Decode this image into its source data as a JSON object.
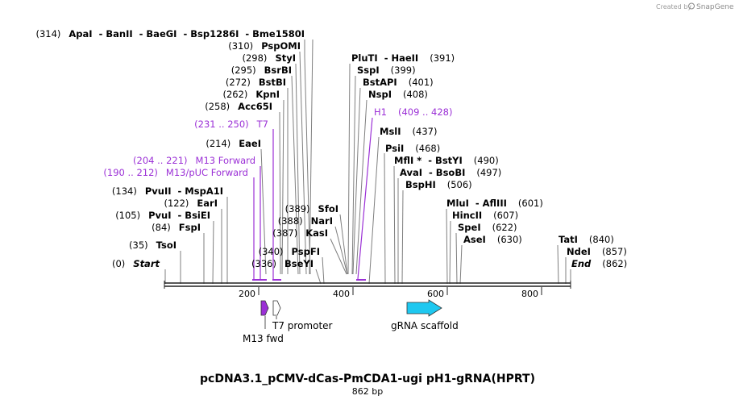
{
  "credit": {
    "prefix": "Created by",
    "brand": "SnapGene"
  },
  "map": {
    "title": "pcDNA3.1_pCMV-dCas-PmCDA1-ugi pH1-gRNA(HPRT)",
    "length_label": "862 bp",
    "length": 862,
    "ticks": [
      "200",
      "400",
      "600",
      "800"
    ]
  },
  "start_label": {
    "pos": "(0)",
    "name": "Start"
  },
  "end_label": {
    "name": "End",
    "pos": "(862)"
  },
  "sites": [
    {
      "pos": "(314)",
      "names": "ApaI  - BanII  - BaeGI  - Bsp1286I  - Bme1580I",
      "bp": 314
    },
    {
      "pos": "(310)",
      "names": "PspOMI",
      "bp": 310
    },
    {
      "pos": "(298)",
      "names": "StyI",
      "bp": 298
    },
    {
      "pos": "(295)",
      "names": "BsrBI",
      "bp": 295
    },
    {
      "pos": "(272)",
      "names": "BstBI",
      "bp": 272
    },
    {
      "pos": "(262)",
      "names": "KpnI",
      "bp": 262
    },
    {
      "pos": "(258)",
      "names": "Acc65I",
      "bp": 258
    },
    {
      "pos": "(214)",
      "names": "EaeI",
      "bp": 214
    },
    {
      "pos": "(134)",
      "names": "PvuII  - MspA1I",
      "bp": 134
    },
    {
      "pos": "(122)",
      "names": "EarI",
      "bp": 122
    },
    {
      "pos": "(105)",
      "names": "PvuI  - BsiEI",
      "bp": 105
    },
    {
      "pos": "(84)",
      "names": "FspI",
      "bp": 84
    },
    {
      "pos": "(35)",
      "names": "TsoI",
      "bp": 35
    },
    {
      "pos": "(389)",
      "names": "SfoI",
      "bp": 389
    },
    {
      "pos": "(388)",
      "names": "NarI",
      "bp": 388
    },
    {
      "pos": "(387)",
      "names": "KasI",
      "bp": 387
    },
    {
      "pos": "(340)",
      "names": "PspFI",
      "bp": 340
    },
    {
      "pos": "(336)",
      "names": "BseYI",
      "bp": 336
    },
    {
      "pos": "(391)",
      "names": "PluTI  - HaeII",
      "bp": 391
    },
    {
      "pos": "(399)",
      "names": "SspI",
      "bp": 399
    },
    {
      "pos": "(401)",
      "names": "BstAPI",
      "bp": 401
    },
    {
      "pos": "(408)",
      "names": "NspI",
      "bp": 408
    },
    {
      "pos": "(437)",
      "names": "MslI",
      "bp": 437
    },
    {
      "pos": "(468)",
      "names": "PsiI",
      "bp": 468
    },
    {
      "pos": "(490)",
      "names": "MflI *  - BstYI",
      "bp": 490
    },
    {
      "pos": "(497)",
      "names": "AvaI  - BsoBI",
      "bp": 497
    },
    {
      "pos": "(506)",
      "names": "BspHI",
      "bp": 506
    },
    {
      "pos": "(601)",
      "names": "MluI  - AflIII",
      "bp": 601
    },
    {
      "pos": "(607)",
      "names": "HincII",
      "bp": 607
    },
    {
      "pos": "(622)",
      "names": "SpeI",
      "bp": 622
    },
    {
      "pos": "(630)",
      "names": "AseI",
      "bp": 630
    },
    {
      "pos": "(840)",
      "names": "TatI",
      "bp": 840
    },
    {
      "pos": "(857)",
      "names": "NdeI",
      "bp": 857
    }
  ],
  "primers": [
    {
      "range": "(231 .. 250)",
      "name": "T7"
    },
    {
      "range": "(204 .. 221)",
      "name": "M13 Forward"
    },
    {
      "range": "(190 .. 212)",
      "name": "M13/pUC Forward"
    },
    {
      "name": "H1",
      "range": "(409 .. 428)"
    }
  ],
  "features": [
    {
      "name": "M13 fwd",
      "color": "#9b30d6"
    },
    {
      "name": "T7 promoter",
      "color": "#ffffff"
    },
    {
      "name": "gRNA scaffold",
      "color": "#1ec8f0"
    }
  ]
}
